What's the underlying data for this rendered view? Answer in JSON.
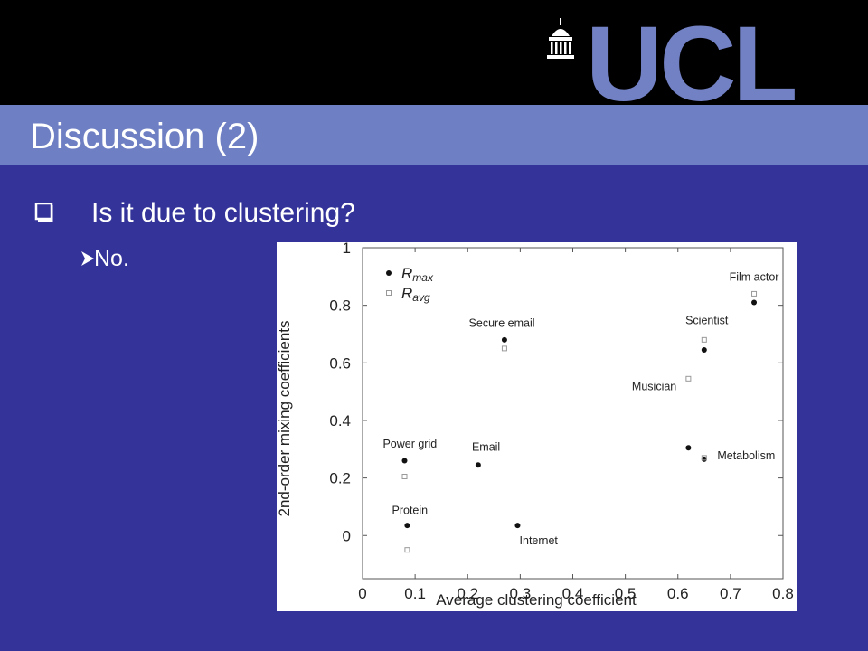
{
  "slide": {
    "logo_text": "UCL",
    "title": "Discussion (2)",
    "bullet": "Is it due to clustering?",
    "sub_bullet": "No.",
    "colors": {
      "background": "#333399",
      "title_band": "#6e7fc3",
      "header": "#000000",
      "logo": "#7280c4",
      "text": "#ffffff"
    },
    "icons": [
      "portico-icon",
      "checkbox-bullet-icon",
      "arrow-bullet-icon"
    ]
  },
  "chart_data": {
    "type": "scatter",
    "title": "",
    "xlabel": "Average clustering coefficient",
    "ylabel": "2nd-order mixing coefficients",
    "xlim": [
      0,
      0.8
    ],
    "ylim": [
      -0.15,
      1
    ],
    "xticks": [
      0,
      0.1,
      0.2,
      0.3,
      0.4,
      0.5,
      0.6,
      0.7,
      0.8
    ],
    "xtick_labels": [
      "0",
      "0.1",
      "0.2",
      "0.3",
      "0.4",
      "0.5",
      "0.6",
      "0.7",
      "0.8"
    ],
    "yticks": [
      0,
      0.2,
      0.4,
      0.6,
      0.8,
      1
    ],
    "ytick_labels": [
      "0",
      "0.2",
      "0.4",
      "0.6",
      "0.8",
      "1"
    ],
    "grid": false,
    "legend": {
      "position": "top-left",
      "entries": [
        {
          "series": "R_max",
          "base": "R",
          "sub": "max",
          "marker": "filled-circle"
        },
        {
          "series": "R_avg",
          "base": "R",
          "sub": "avg",
          "marker": "open-square"
        }
      ]
    },
    "series": [
      {
        "name": "R_max",
        "marker": "filled-circle",
        "points": [
          {
            "label": "Power grid",
            "x": 0.08,
            "y": 0.26
          },
          {
            "label": "Protein",
            "x": 0.085,
            "y": 0.035
          },
          {
            "label": "Email",
            "x": 0.22,
            "y": 0.245
          },
          {
            "label": "Secure email",
            "x": 0.27,
            "y": 0.68
          },
          {
            "label": "Internet",
            "x": 0.295,
            "y": 0.035
          },
          {
            "label": "Metabolism",
            "x": 0.62,
            "y": 0.305
          },
          {
            "label": "Scientist",
            "x": 0.65,
            "y": 0.645
          },
          {
            "label": "Metabolism",
            "x": 0.65,
            "y": 0.265
          },
          {
            "label": "Film actor",
            "x": 0.745,
            "y": 0.81
          }
        ]
      },
      {
        "name": "R_avg",
        "marker": "open-square",
        "points": [
          {
            "label": "Power grid",
            "x": 0.08,
            "y": 0.205
          },
          {
            "label": "Protein",
            "x": 0.085,
            "y": -0.05
          },
          {
            "label": "Secure email",
            "x": 0.27,
            "y": 0.65
          },
          {
            "label": "Musician",
            "x": 0.62,
            "y": 0.545
          },
          {
            "label": "Scientist",
            "x": 0.65,
            "y": 0.68
          },
          {
            "label": "Metabolism",
            "x": 0.65,
            "y": 0.27
          },
          {
            "label": "Film actor",
            "x": 0.745,
            "y": 0.84
          }
        ]
      }
    ],
    "annotations": [
      {
        "text": "Film actor",
        "x": 0.745,
        "y": 0.885
      },
      {
        "text": "Scientist",
        "x": 0.655,
        "y": 0.735
      },
      {
        "text": "Secure email",
        "x": 0.265,
        "y": 0.725
      },
      {
        "text": "Musician",
        "x": 0.555,
        "y": 0.505
      },
      {
        "text": "Power grid",
        "x": 0.09,
        "y": 0.305
      },
      {
        "text": "Email",
        "x": 0.235,
        "y": 0.295
      },
      {
        "text": "Metabolism",
        "x": 0.73,
        "y": 0.265
      },
      {
        "text": "Protein",
        "x": 0.09,
        "y": 0.075
      },
      {
        "text": "Internet",
        "x": 0.335,
        "y": -0.03
      }
    ]
  }
}
